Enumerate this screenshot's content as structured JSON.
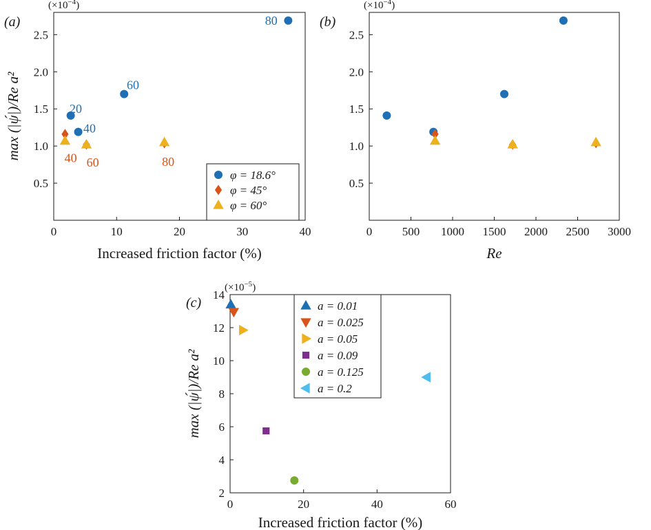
{
  "chart_data": [
    {
      "type": "scatter",
      "panel_label": "(a)",
      "multiplier": "(×10",
      "multiplier_exp": "−4",
      "multiplier_close": ")",
      "xlabel": "Increased friction factor (%)",
      "ylabel": "max (|ψ́|)/Re a²",
      "xlim": [
        0,
        40
      ],
      "ylim": [
        0,
        2.8
      ],
      "xticks": [
        0,
        10,
        20,
        30,
        40
      ],
      "yticks": [
        0.5,
        1.0,
        1.5,
        2.0,
        2.5
      ],
      "xtick_labels": [
        "0",
        "10",
        "20",
        "30",
        "40"
      ],
      "ytick_labels": [
        "0.5",
        "1.0",
        "1.5",
        "2.0",
        "2.5"
      ],
      "legend": "bottom-right",
      "series": [
        {
          "name": "φ = 18.6°",
          "marker": "circle",
          "color": "#1f6fb4",
          "x": [
            2.7,
            3.9,
            11.2,
            37.3
          ],
          "y": [
            1.41,
            1.19,
            1.7,
            2.69
          ]
        },
        {
          "name": "φ = 45°",
          "marker": "diamond",
          "color": "#d9541a",
          "x": [
            1.8,
            5.2,
            17.6
          ],
          "y": [
            1.16,
            1.02,
            1.04
          ]
        },
        {
          "name": "φ = 60°",
          "marker": "triangle-up",
          "color": "#edb120",
          "x": [
            1.8,
            5.2,
            17.6
          ],
          "y": [
            1.07,
            1.02,
            1.05
          ]
        }
      ],
      "annotations": [
        {
          "text": "20",
          "x": 3.5,
          "y": 1.5,
          "color": "#1f6fb4"
        },
        {
          "text": "40",
          "x": 5.7,
          "y": 1.24,
          "color": "#1f6fb4"
        },
        {
          "text": "60",
          "x": 12.6,
          "y": 1.82,
          "color": "#1f6fb4"
        },
        {
          "text": "80",
          "x": 34.6,
          "y": 2.69,
          "color": "#1f6fb4"
        },
        {
          "text": "40",
          "x": 2.7,
          "y": 0.84,
          "color": "#d9541a"
        },
        {
          "text": "60",
          "x": 6.2,
          "y": 0.78,
          "color": "#d9541a"
        },
        {
          "text": "80",
          "x": 18.2,
          "y": 0.79,
          "color": "#d9541a"
        }
      ]
    },
    {
      "type": "scatter",
      "panel_label": "(b)",
      "multiplier": "(×10",
      "multiplier_exp": "−4",
      "multiplier_close": ")",
      "xlabel": "Re",
      "ylabel": "",
      "xlim": [
        0,
        3000
      ],
      "ylim": [
        0,
        2.8
      ],
      "xticks": [
        0,
        500,
        1000,
        1500,
        2000,
        2500,
        3000
      ],
      "yticks": [
        0.5,
        1.0,
        1.5,
        2.0,
        2.5
      ],
      "xtick_labels": [
        "0",
        "500",
        "1000",
        "1500",
        "2000",
        "2500",
        "3000"
      ],
      "ytick_labels": [
        "0.5",
        "1.0",
        "1.5",
        "2.0",
        "2.5"
      ],
      "series": [
        {
          "name": "φ = 18.6°",
          "marker": "circle",
          "color": "#1f6fb4",
          "x": [
            210,
            770,
            1620,
            2330
          ],
          "y": [
            1.41,
            1.19,
            1.7,
            2.69
          ]
        },
        {
          "name": "φ = 45°",
          "marker": "diamond",
          "color": "#d9541a",
          "x": [
            790,
            1720,
            2720
          ],
          "y": [
            1.16,
            1.02,
            1.04
          ]
        },
        {
          "name": "φ = 60°",
          "marker": "triangle-up",
          "color": "#edb120",
          "x": [
            790,
            1720,
            2720
          ],
          "y": [
            1.07,
            1.02,
            1.05
          ]
        }
      ]
    },
    {
      "type": "scatter",
      "panel_label": "(c)",
      "multiplier": "(×10",
      "multiplier_exp": "−5",
      "multiplier_close": ")",
      "xlabel": "Increased friction factor (%)",
      "ylabel": "max (|ψ́|)/Re a²",
      "xlim": [
        0,
        60
      ],
      "ylim": [
        2,
        14
      ],
      "xticks": [
        0,
        20,
        40,
        60
      ],
      "yticks": [
        2,
        4,
        6,
        8,
        10,
        12,
        14
      ],
      "xtick_labels": [
        "0",
        "20",
        "40",
        "60"
      ],
      "ytick_labels": [
        "2",
        "4",
        "6",
        "8",
        "10",
        "12",
        "14"
      ],
      "legend": "top-center",
      "series": [
        {
          "name": "a = 0.01",
          "marker": "triangle-up",
          "color": "#1f6fb4",
          "x": [
            0.2
          ],
          "y": [
            13.4
          ]
        },
        {
          "name": "a = 0.025",
          "marker": "triangle-down",
          "color": "#d9541a",
          "x": [
            1.0
          ],
          "y": [
            12.95
          ]
        },
        {
          "name": "a = 0.05",
          "marker": "triangle-right",
          "color": "#edb120",
          "x": [
            3.5
          ],
          "y": [
            11.85
          ]
        },
        {
          "name": "a = 0.09",
          "marker": "square",
          "color": "#7e2f8e",
          "x": [
            9.8
          ],
          "y": [
            5.75
          ]
        },
        {
          "name": "a = 0.125",
          "marker": "circle",
          "color": "#77ac30",
          "x": [
            17.5
          ],
          "y": [
            2.75
          ]
        },
        {
          "name": "a = 0.2",
          "marker": "triangle-left",
          "color": "#4dbeee",
          "x": [
            53.5
          ],
          "y": [
            9.0
          ]
        }
      ]
    }
  ]
}
